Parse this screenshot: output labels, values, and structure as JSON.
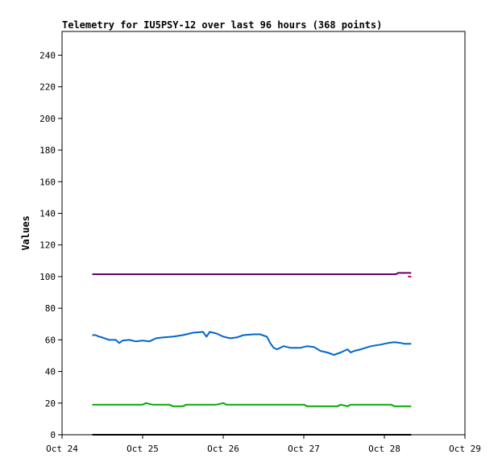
{
  "chart_data": {
    "type": "line",
    "title": "Telemetry for IU5PSY-12 over last 96 hours (368 points)",
    "xlabel": "",
    "ylabel": "Values",
    "x_ticks": [
      "Oct 24",
      "Oct 25",
      "Oct 26",
      "Oct 27",
      "Oct 28",
      "Oct 29"
    ],
    "xlim": [
      "Oct 24",
      "Oct 29"
    ],
    "y_ticks": [
      0,
      20,
      40,
      60,
      80,
      100,
      120,
      140,
      160,
      180,
      200,
      220,
      240
    ],
    "ylim": [
      0,
      255
    ],
    "grid": false,
    "legend": "none",
    "series": [
      {
        "color": "#660066",
        "points": [
          [
            "Oct 24 09:00",
            101.5
          ],
          [
            "Oct 28 03:30",
            101.5
          ],
          [
            "Oct 28 04:00",
            102.3
          ],
          [
            "Oct 28 08:00",
            102.3
          ]
        ]
      },
      {
        "color": "#cc0033",
        "points": [
          [
            "Oct 28 07:00",
            100.0
          ],
          [
            "Oct 28 08:00",
            100.0
          ]
        ]
      },
      {
        "color": "#0066cc",
        "points": [
          [
            "Oct 24 09:00",
            63
          ],
          [
            "Oct 24 10:00",
            63
          ],
          [
            "Oct 24 11:00",
            62
          ],
          [
            "Oct 24 12:00",
            61.5
          ],
          [
            "Oct 24 14:00",
            60
          ],
          [
            "Oct 24 16:00",
            60
          ],
          [
            "Oct 24 17:00",
            58
          ],
          [
            "Oct 24 18:00",
            59.5
          ],
          [
            "Oct 24 20:00",
            60
          ],
          [
            "Oct 24 22:00",
            59
          ],
          [
            "Oct 25 00:00",
            59.5
          ],
          [
            "Oct 25 02:00",
            59
          ],
          [
            "Oct 25 04:00",
            61
          ],
          [
            "Oct 25 06:00",
            61.5
          ],
          [
            "Oct 25 09:00",
            62
          ],
          [
            "Oct 25 12:00",
            63
          ],
          [
            "Oct 25 15:00",
            64.5
          ],
          [
            "Oct 25 18:00",
            65
          ],
          [
            "Oct 25 19:00",
            62
          ],
          [
            "Oct 25 20:00",
            65
          ],
          [
            "Oct 25 22:00",
            64
          ],
          [
            "Oct 26 00:00",
            62
          ],
          [
            "Oct 26 02:00",
            61
          ],
          [
            "Oct 26 04:00",
            61.5
          ],
          [
            "Oct 26 06:00",
            63
          ],
          [
            "Oct 26 09:00",
            63.5
          ],
          [
            "Oct 26 11:00",
            63.5
          ],
          [
            "Oct 26 13:00",
            62
          ],
          [
            "Oct 26 14:00",
            58
          ],
          [
            "Oct 26 15:00",
            55
          ],
          [
            "Oct 26 16:00",
            54
          ],
          [
            "Oct 26 17:00",
            55
          ],
          [
            "Oct 26 18:00",
            56
          ],
          [
            "Oct 26 20:00",
            55
          ],
          [
            "Oct 26 23:00",
            55
          ],
          [
            "Oct 27 01:00",
            56
          ],
          [
            "Oct 27 03:00",
            55.5
          ],
          [
            "Oct 27 05:00",
            53
          ],
          [
            "Oct 27 07:00",
            52
          ],
          [
            "Oct 27 09:00",
            50.5
          ],
          [
            "Oct 27 11:00",
            52
          ],
          [
            "Oct 27 13:00",
            54
          ],
          [
            "Oct 27 14:00",
            52
          ],
          [
            "Oct 27 15:00",
            53
          ],
          [
            "Oct 27 17:00",
            54
          ],
          [
            "Oct 27 20:00",
            56
          ],
          [
            "Oct 27 23:00",
            57
          ],
          [
            "Oct 28 01:00",
            58
          ],
          [
            "Oct 28 03:00",
            58.5
          ],
          [
            "Oct 28 05:00",
            58
          ],
          [
            "Oct 28 06:00",
            57.5
          ],
          [
            "Oct 28 08:00",
            57.5
          ]
        ]
      },
      {
        "color": "#00aa00",
        "points": [
          [
            "Oct 24 09:00",
            19
          ],
          [
            "Oct 25 00:00",
            19
          ],
          [
            "Oct 25 01:00",
            20
          ],
          [
            "Oct 25 03:00",
            19
          ],
          [
            "Oct 25 08:00",
            19
          ],
          [
            "Oct 25 09:00",
            18
          ],
          [
            "Oct 25 12:00",
            18
          ],
          [
            "Oct 25 13:00",
            19
          ],
          [
            "Oct 25 22:00",
            19
          ],
          [
            "Oct 26 00:00",
            20
          ],
          [
            "Oct 26 01:00",
            19
          ],
          [
            "Oct 27 00:00",
            19
          ],
          [
            "Oct 27 01:00",
            18
          ],
          [
            "Oct 27 10:00",
            18
          ],
          [
            "Oct 27 11:00",
            19
          ],
          [
            "Oct 27 13:00",
            18
          ],
          [
            "Oct 27 14:00",
            19
          ],
          [
            "Oct 28 02:00",
            19
          ],
          [
            "Oct 28 03:00",
            18
          ],
          [
            "Oct 28 08:00",
            18
          ]
        ]
      },
      {
        "color": "#000000",
        "points": [
          [
            "Oct 24 09:00",
            0
          ],
          [
            "Oct 28 08:00",
            0
          ]
        ]
      }
    ]
  }
}
